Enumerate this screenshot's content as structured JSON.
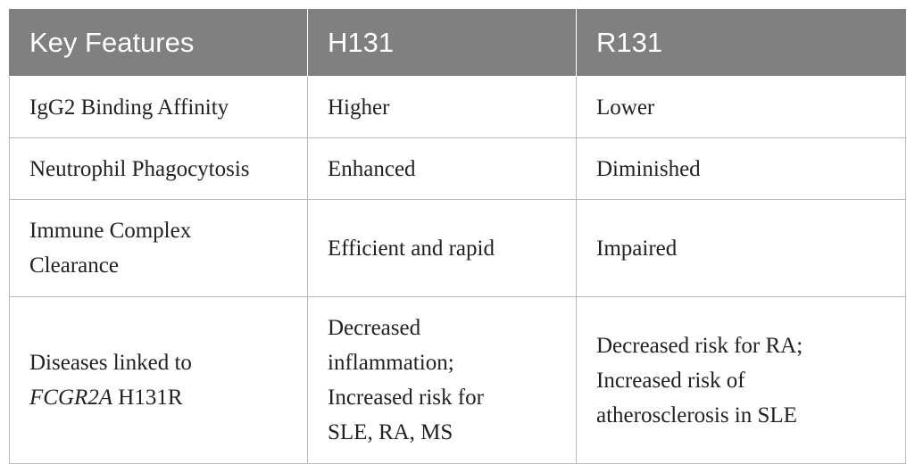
{
  "header": {
    "col1": "Key Features",
    "col2": "H131",
    "col3": "R131"
  },
  "rows": [
    {
      "feature": "IgG2 Binding Affinity",
      "h131": "Higher",
      "r131": "Lower"
    },
    {
      "feature": "Neutrophil Phagocytosis",
      "h131": "Enhanced",
      "r131": "Diminished"
    },
    {
      "feature_line1": "Immune Complex",
      "feature_line2": "Clearance",
      "h131": "Efficient and rapid",
      "r131": "Impaired"
    },
    {
      "feature_line1": "Diseases linked to",
      "feature_gene": "FCGR2A",
      "feature_variant": " H131R",
      "h131_line1": "Decreased",
      "h131_line2": "inflammation;",
      "h131_line3": "Increased risk for",
      "h131_line4": "SLE, RA, MS",
      "r131_line1": "Decreased risk for RA;",
      "r131_line2": "Increased risk of",
      "r131_line3": "atherosclerosis in SLE"
    }
  ],
  "colors": {
    "header_bg": "#808080",
    "header_text": "#ffffff",
    "border": "#b8b8b8"
  }
}
